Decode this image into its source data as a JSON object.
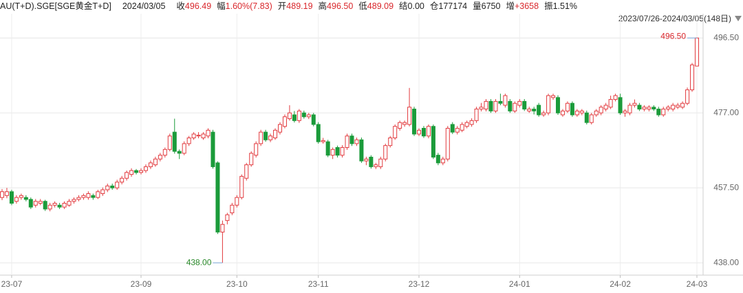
{
  "chart_data": {
    "type": "candlestick",
    "title": "AU(T+D).SGE[SGE黄金T+D]",
    "date": "2024/03/05",
    "stats": [
      {
        "label": "收",
        "value": "496.49",
        "color": "#d9262b"
      },
      {
        "label": "幅",
        "value": "1.60%(7.83)",
        "color": "#d9262b"
      },
      {
        "label": "开",
        "value": "489.19",
        "color": "#d9262b"
      },
      {
        "label": "高",
        "value": "496.50",
        "color": "#d9262b"
      },
      {
        "label": "低",
        "value": "489.09",
        "color": "#d9262b"
      },
      {
        "label": "结",
        "value": "0.00",
        "color": "#222222"
      },
      {
        "label": "仓",
        "value": "177174",
        "color": "#222222"
      },
      {
        "label": "量",
        "value": "6750",
        "color": "#222222"
      },
      {
        "label": "增",
        "value": "+3658",
        "color": "#d9262b"
      },
      {
        "label": "振",
        "value": "1.51%",
        "color": "#222222"
      }
    ],
    "range_label": "2023/07/26-2024/03/05(148日)",
    "max_label": "496.50",
    "min_label": "438.00",
    "up_color": "#e23a3e",
    "down_color": "#1b9b3a",
    "grid": true,
    "ylim": [
      434.8,
      502.8
    ],
    "yticks": [
      {
        "value": 438,
        "label": "438.00"
      },
      {
        "value": 457.5,
        "label": "457.50"
      },
      {
        "value": 477,
        "label": "477.00"
      },
      {
        "value": 496.5,
        "label": "496.50"
      }
    ],
    "categories": [
      null,
      null,
      "23-07",
      null,
      null,
      null,
      null,
      null,
      null,
      null,
      null,
      null,
      null,
      null,
      null,
      null,
      null,
      null,
      null,
      null,
      null,
      null,
      null,
      null,
      null,
      null,
      null,
      null,
      null,
      "23-09",
      null,
      null,
      null,
      null,
      null,
      null,
      null,
      null,
      null,
      null,
      null,
      null,
      null,
      null,
      null,
      null,
      null,
      null,
      null,
      "23-10",
      null,
      null,
      null,
      null,
      null,
      null,
      null,
      null,
      null,
      null,
      null,
      null,
      null,
      null,
      null,
      null,
      "23-11",
      null,
      null,
      null,
      null,
      null,
      null,
      null,
      null,
      null,
      null,
      null,
      null,
      null,
      null,
      null,
      null,
      null,
      null,
      null,
      null,
      "23-12",
      null,
      null,
      null,
      null,
      null,
      null,
      null,
      null,
      null,
      null,
      null,
      null,
      null,
      null,
      null,
      null,
      null,
      null,
      null,
      null,
      "24-01",
      null,
      null,
      null,
      null,
      null,
      null,
      null,
      null,
      null,
      null,
      null,
      null,
      null,
      null,
      null,
      null,
      null,
      null,
      null,
      null,
      "24-02",
      null,
      null,
      null,
      null,
      null,
      null,
      null,
      null,
      null,
      null,
      null,
      null,
      null,
      null,
      null,
      "24-03"
    ],
    "ohlc": [
      [
        455,
        457.2,
        454.3,
        456.5
      ],
      [
        455.5,
        457.5,
        454.8,
        456.5
      ],
      [
        456.5,
        457,
        453,
        453.5
      ],
      [
        454,
        455.6,
        453.4,
        455
      ],
      [
        455,
        456,
        454.4,
        455.5
      ],
      [
        455,
        455.6,
        454,
        454.5
      ],
      [
        454.5,
        455,
        452,
        452.5
      ],
      [
        453,
        454.6,
        452.4,
        454
      ],
      [
        453.5,
        454.6,
        453,
        454
      ],
      [
        454,
        454.4,
        451.5,
        452
      ],
      [
        452,
        453.6,
        451.4,
        453
      ],
      [
        453,
        454,
        452.4,
        453.5
      ],
      [
        453,
        453.6,
        452,
        452.5
      ],
      [
        452.5,
        454,
        452,
        453.5
      ],
      [
        453,
        454.6,
        452.6,
        454
      ],
      [
        454,
        455,
        453.4,
        454.5
      ],
      [
        454.5,
        455.6,
        454,
        455
      ],
      [
        455,
        456,
        454.4,
        455.5
      ],
      [
        455,
        456.6,
        454.4,
        456
      ],
      [
        455.5,
        456,
        454.4,
        455
      ],
      [
        455,
        457,
        454.6,
        456.5
      ],
      [
        456,
        457.6,
        455.4,
        457
      ],
      [
        457,
        458.6,
        456.4,
        458
      ],
      [
        458,
        458.6,
        457,
        457.5
      ],
      [
        457.5,
        459.6,
        457,
        459
      ],
      [
        459,
        460.6,
        458.4,
        460
      ],
      [
        460,
        462,
        459.4,
        461.5
      ],
      [
        461,
        462.6,
        460.4,
        462
      ],
      [
        462,
        462.4,
        461,
        461.5
      ],
      [
        461.5,
        462.6,
        461,
        462
      ],
      [
        462,
        463.6,
        461.4,
        463
      ],
      [
        463,
        464.6,
        462.4,
        464
      ],
      [
        463.5,
        465.6,
        463,
        465
      ],
      [
        465,
        466.6,
        464.4,
        466
      ],
      [
        466,
        468,
        465.4,
        467.5
      ],
      [
        467.5,
        471.6,
        467,
        471
      ],
      [
        472,
        475.5,
        466.4,
        467
      ],
      [
        467,
        467.5,
        465,
        466.5
      ],
      [
        466.5,
        469.6,
        466,
        469
      ],
      [
        469,
        471,
        468.4,
        470.5
      ],
      [
        470.5,
        472,
        470,
        471.5
      ],
      [
        471,
        472,
        470.4,
        471.2
      ],
      [
        470.5,
        472,
        470,
        471.5
      ],
      [
        471,
        473,
        470.4,
        472.5
      ],
      [
        472,
        472.6,
        462.5,
        463
      ],
      [
        464,
        464.4,
        445.5,
        446
      ],
      [
        446,
        449,
        438,
        448
      ],
      [
        449,
        451,
        448,
        450.5
      ],
      [
        451,
        453.6,
        450.4,
        453
      ],
      [
        453,
        455.6,
        452.4,
        455
      ],
      [
        455,
        461,
        454.5,
        460.5
      ],
      [
        460,
        464,
        459.4,
        463.5
      ],
      [
        463.5,
        467,
        463,
        466.5
      ],
      [
        466,
        469.6,
        465.4,
        469
      ],
      [
        469,
        472.6,
        468.4,
        472
      ],
      [
        472,
        472.6,
        469.5,
        470
      ],
      [
        470,
        471.6,
        469.4,
        471
      ],
      [
        470.5,
        473,
        470,
        472.5
      ],
      [
        472,
        474.6,
        471.4,
        474
      ],
      [
        473.5,
        476.6,
        473,
        476
      ],
      [
        475.5,
        479,
        475,
        477
      ],
      [
        476.5,
        477.5,
        474.5,
        475
      ],
      [
        475,
        478,
        474.4,
        477.5
      ],
      [
        477,
        477.6,
        475.5,
        476
      ],
      [
        476,
        477,
        475.4,
        476.5
      ],
      [
        476.5,
        477,
        473.5,
        474
      ],
      [
        474,
        474.6,
        469,
        469.5
      ],
      [
        469.5,
        470.5,
        469,
        469.8
      ],
      [
        469.5,
        470,
        465.5,
        466
      ],
      [
        466,
        468,
        465,
        467.5
      ],
      [
        468,
        468.5,
        465.4,
        466
      ],
      [
        466,
        468.6,
        465.4,
        468
      ],
      [
        468,
        471.6,
        467.4,
        471
      ],
      [
        471,
        471.6,
        468.4,
        469
      ],
      [
        469,
        470.6,
        468.4,
        470
      ],
      [
        470,
        470.6,
        464,
        464.5
      ],
      [
        464.5,
        465.6,
        463.4,
        465
      ],
      [
        465.5,
        466,
        462.5,
        463
      ],
      [
        463,
        464,
        462.4,
        463.5
      ],
      [
        463,
        465.6,
        462.4,
        465
      ],
      [
        465,
        469,
        464.4,
        468.5
      ],
      [
        468.5,
        471,
        468,
        470.5
      ],
      [
        470.5,
        474,
        470,
        473.5
      ],
      [
        473,
        475,
        472.4,
        474.5
      ],
      [
        474,
        475,
        473.4,
        474.5
      ],
      [
        474,
        483.5,
        473.5,
        478.5
      ],
      [
        478,
        478.6,
        471,
        471.5
      ],
      [
        471.5,
        473,
        471,
        472.5
      ],
      [
        473,
        473.6,
        470.5,
        471
      ],
      [
        471,
        474,
        470.4,
        473.5
      ],
      [
        473.5,
        474,
        465,
        465.5
      ],
      [
        466,
        466.6,
        463.4,
        464
      ],
      [
        464,
        465.6,
        463.4,
        465
      ],
      [
        465,
        473.6,
        464.4,
        473
      ],
      [
        474,
        474.6,
        471.5,
        472
      ],
      [
        472,
        473.6,
        471.4,
        473
      ],
      [
        472.5,
        474.6,
        472,
        474
      ],
      [
        473.5,
        475,
        473,
        474.5
      ],
      [
        474,
        475.6,
        473.4,
        475
      ],
      [
        475,
        478.6,
        474.4,
        478
      ],
      [
        478,
        479.6,
        477.4,
        478.5
      ],
      [
        478,
        480.6,
        477.4,
        480
      ],
      [
        480,
        480.6,
        477,
        477.5
      ],
      [
        477.5,
        480.6,
        477,
        480
      ],
      [
        480,
        482,
        479,
        479.5
      ],
      [
        479,
        482,
        478.4,
        481.5
      ],
      [
        480,
        480.6,
        477,
        477.5
      ],
      [
        477.5,
        480,
        477,
        479.5
      ],
      [
        479,
        480.6,
        478.4,
        480
      ],
      [
        480,
        480.6,
        477.5,
        478
      ],
      [
        477.5,
        478.6,
        477,
        478
      ],
      [
        478,
        478.6,
        476.6,
        477.5
      ],
      [
        479,
        479.6,
        476,
        476.5
      ],
      [
        476.5,
        477.6,
        476,
        477
      ],
      [
        477,
        482,
        476.4,
        481.5
      ],
      [
        481,
        482,
        480.4,
        481.5
      ],
      [
        481,
        481.6,
        476.5,
        477
      ],
      [
        476.5,
        478,
        476,
        477.5
      ],
      [
        477.5,
        480,
        477,
        479.5
      ],
      [
        479.5,
        480,
        476,
        476.5
      ],
      [
        476.5,
        478,
        476,
        477.5
      ],
      [
        477,
        478,
        476.4,
        477.5
      ],
      [
        477,
        477.6,
        474,
        474.5
      ],
      [
        474.5,
        477,
        474,
        476.5
      ],
      [
        476.5,
        478,
        476,
        477.5
      ],
      [
        477,
        479,
        476.4,
        478.5
      ],
      [
        478,
        479.6,
        477.4,
        479
      ],
      [
        478.5,
        481.5,
        478,
        480.5
      ],
      [
        480.5,
        482,
        480,
        481.5
      ],
      [
        481,
        482,
        476.5,
        477
      ],
      [
        477,
        478,
        476,
        477.5
      ],
      [
        477,
        479.6,
        476.4,
        479
      ],
      [
        479,
        480.5,
        478.4,
        479.5
      ],
      [
        479,
        479.6,
        477.5,
        478
      ],
      [
        478,
        479,
        477.4,
        478.5
      ],
      [
        478,
        479,
        477.4,
        478.5
      ],
      [
        478.5,
        479,
        477.5,
        478
      ],
      [
        478,
        478.6,
        476,
        476.5
      ],
      [
        476.5,
        478.6,
        476,
        478
      ],
      [
        478,
        479,
        477.4,
        478.5
      ],
      [
        478,
        479.6,
        477.4,
        479
      ],
      [
        478.5,
        479.6,
        478,
        479
      ],
      [
        478.5,
        480,
        478,
        479.5
      ],
      [
        479.5,
        483.6,
        479,
        483
      ],
      [
        483,
        490,
        482.5,
        489.5
      ],
      [
        489.19,
        496.5,
        489.09,
        496.49
      ]
    ]
  }
}
